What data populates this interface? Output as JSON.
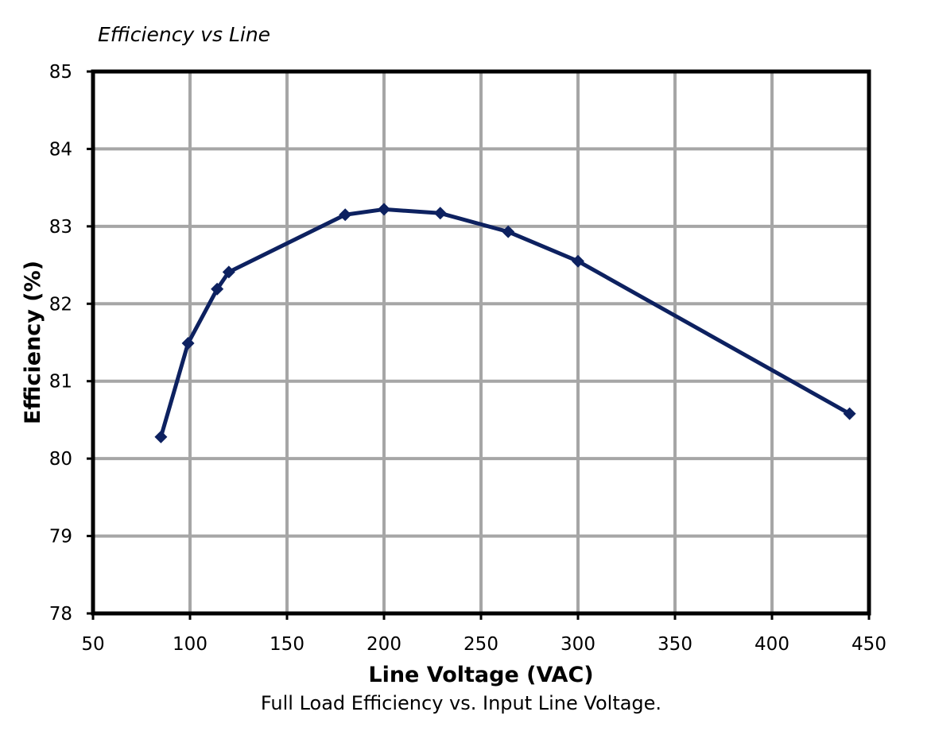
{
  "chart_data": {
    "type": "line",
    "title": "Efficiency vs Line",
    "xlabel": "Line Voltage (VAC)",
    "ylabel": "Efficiency (%)",
    "caption": "Full Load Efficiency vs. Input Line Voltage.",
    "xlim": [
      50,
      450
    ],
    "ylim": [
      78,
      85
    ],
    "xticks": [
      50,
      100,
      150,
      200,
      250,
      300,
      350,
      400,
      450
    ],
    "yticks": [
      78,
      79,
      80,
      81,
      82,
      83,
      84,
      85
    ],
    "grid": true,
    "series": [
      {
        "color": "#0d2160",
        "marker": "diamond",
        "x": [
          85,
          99,
          114,
          120,
          180,
          200,
          229,
          264,
          300,
          440
        ],
        "y": [
          80.28,
          81.49,
          82.19,
          82.41,
          83.15,
          83.22,
          83.17,
          82.93,
          82.55,
          80.58
        ]
      }
    ]
  },
  "colors": {
    "grid": "#a6a6a6",
    "frame": "#000000",
    "series": "#0d2160"
  }
}
